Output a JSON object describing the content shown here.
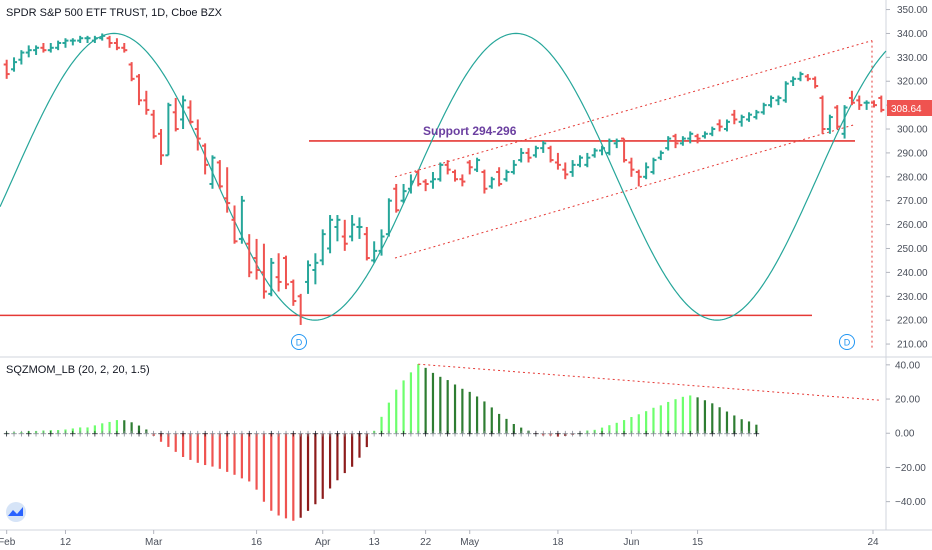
{
  "chart_data": [
    {
      "type": "ohlc",
      "title": "SPDR S&P 500 ETF TRUST, 1D, Cboe BZX",
      "y_axis_ticks": [
        210,
        220,
        230,
        240,
        250,
        260,
        270,
        280,
        290,
        300,
        310,
        320,
        330,
        340,
        350
      ],
      "ylim": [
        205,
        354
      ],
      "last_price": "308.64",
      "x_axis_labels": [
        "Feb",
        "12",
        "Mar",
        "16",
        "Apr",
        "13",
        "22",
        "May",
        "18",
        "Jun",
        "15",
        "24"
      ],
      "support_label": "Support 294-296",
      "support_level": 295,
      "low_line_level": 222,
      "event_badges": [
        "D",
        "D"
      ],
      "bars": [
        {
          "o": 327,
          "h": 329,
          "l": 321,
          "c": 323
        },
        {
          "o": 325,
          "h": 330,
          "l": 324,
          "c": 328
        },
        {
          "o": 329,
          "h": 333,
          "l": 327,
          "c": 332
        },
        {
          "o": 332,
          "h": 335,
          "l": 330,
          "c": 333
        },
        {
          "o": 333,
          "h": 335,
          "l": 331,
          "c": 334
        },
        {
          "o": 334,
          "h": 336,
          "l": 332,
          "c": 333
        },
        {
          "o": 333,
          "h": 336,
          "l": 332,
          "c": 334
        },
        {
          "o": 334,
          "h": 337,
          "l": 333,
          "c": 336
        },
        {
          "o": 336,
          "h": 338,
          "l": 334,
          "c": 337
        },
        {
          "o": 337,
          "h": 338,
          "l": 335,
          "c": 337
        },
        {
          "o": 337,
          "h": 339,
          "l": 336,
          "c": 338
        },
        {
          "o": 338,
          "h": 339,
          "l": 336,
          "c": 338
        },
        {
          "o": 337,
          "h": 339,
          "l": 336,
          "c": 338
        },
        {
          "o": 338,
          "h": 340,
          "l": 337,
          "c": 339
        },
        {
          "o": 338,
          "h": 339,
          "l": 334,
          "c": 336
        },
        {
          "o": 336,
          "h": 338,
          "l": 333,
          "c": 334
        },
        {
          "o": 334,
          "h": 336,
          "l": 332,
          "c": 333
        },
        {
          "o": 327,
          "h": 328,
          "l": 320,
          "c": 321
        },
        {
          "o": 322,
          "h": 323,
          "l": 310,
          "c": 312
        },
        {
          "o": 312,
          "h": 316,
          "l": 306,
          "c": 308
        },
        {
          "o": 306,
          "h": 308,
          "l": 296,
          "c": 297
        },
        {
          "o": 298,
          "h": 300,
          "l": 285,
          "c": 289
        },
        {
          "o": 289,
          "h": 311,
          "l": 289,
          "c": 310
        },
        {
          "o": 307,
          "h": 313,
          "l": 299,
          "c": 300
        },
        {
          "o": 304,
          "h": 314,
          "l": 300,
          "c": 312
        },
        {
          "o": 309,
          "h": 312,
          "l": 302,
          "c": 303
        },
        {
          "o": 300,
          "h": 304,
          "l": 291,
          "c": 296
        },
        {
          "o": 293,
          "h": 294,
          "l": 281,
          "c": 285
        },
        {
          "o": 277,
          "h": 289,
          "l": 275,
          "c": 288
        },
        {
          "o": 286,
          "h": 287,
          "l": 275,
          "c": 276
        },
        {
          "o": 271,
          "h": 284,
          "l": 265,
          "c": 269
        },
        {
          "o": 262,
          "h": 268,
          "l": 252,
          "c": 253
        },
        {
          "o": 254,
          "h": 272,
          "l": 252,
          "c": 270
        },
        {
          "o": 252,
          "h": 256,
          "l": 238,
          "c": 240
        },
        {
          "o": 246,
          "h": 254,
          "l": 237,
          "c": 241
        },
        {
          "o": 240,
          "h": 252,
          "l": 229,
          "c": 232
        },
        {
          "o": 231,
          "h": 246,
          "l": 230,
          "c": 244
        },
        {
          "o": 238,
          "h": 248,
          "l": 232,
          "c": 236
        },
        {
          "o": 246,
          "h": 247,
          "l": 233,
          "c": 235
        },
        {
          "o": 236,
          "h": 237,
          "l": 226,
          "c": 228
        },
        {
          "o": 230,
          "h": 231,
          "l": 218,
          "c": 222
        },
        {
          "o": 236,
          "h": 245,
          "l": 231,
          "c": 243
        },
        {
          "o": 241,
          "h": 248,
          "l": 235,
          "c": 244
        },
        {
          "o": 245,
          "h": 258,
          "l": 243,
          "c": 256
        },
        {
          "o": 250,
          "h": 264,
          "l": 248,
          "c": 262
        },
        {
          "o": 259,
          "h": 264,
          "l": 253,
          "c": 262
        },
        {
          "o": 255,
          "h": 262,
          "l": 249,
          "c": 252
        },
        {
          "o": 255,
          "h": 264,
          "l": 253,
          "c": 260
        },
        {
          "o": 259,
          "h": 263,
          "l": 254,
          "c": 259
        },
        {
          "o": 256,
          "h": 259,
          "l": 245,
          "c": 246
        },
        {
          "o": 245,
          "h": 253,
          "l": 244,
          "c": 249
        },
        {
          "o": 249,
          "h": 258,
          "l": 247,
          "c": 255
        },
        {
          "o": 256,
          "h": 271,
          "l": 255,
          "c": 270
        },
        {
          "o": 275,
          "h": 277,
          "l": 265,
          "c": 266
        },
        {
          "o": 270,
          "h": 277,
          "l": 269,
          "c": 274
        },
        {
          "o": 275,
          "h": 281,
          "l": 273,
          "c": 278
        },
        {
          "o": 282,
          "h": 283,
          "l": 276,
          "c": 277
        },
        {
          "o": 278,
          "h": 279,
          "l": 274,
          "c": 277
        },
        {
          "o": 278,
          "h": 282,
          "l": 275,
          "c": 279
        },
        {
          "o": 279,
          "h": 286,
          "l": 278,
          "c": 285
        },
        {
          "o": 285,
          "h": 287,
          "l": 281,
          "c": 283
        },
        {
          "o": 282,
          "h": 283,
          "l": 278,
          "c": 279
        },
        {
          "o": 279,
          "h": 281,
          "l": 276,
          "c": 278
        },
        {
          "o": 286,
          "h": 287,
          "l": 281,
          "c": 284
        },
        {
          "o": 283,
          "h": 288,
          "l": 282,
          "c": 287
        },
        {
          "o": 282,
          "h": 283,
          "l": 273,
          "c": 275
        },
        {
          "o": 276,
          "h": 280,
          "l": 275,
          "c": 279
        },
        {
          "o": 282,
          "h": 284,
          "l": 276,
          "c": 277
        },
        {
          "o": 279,
          "h": 283,
          "l": 278,
          "c": 282
        },
        {
          "o": 282,
          "h": 287,
          "l": 281,
          "c": 285
        },
        {
          "o": 287,
          "h": 292,
          "l": 286,
          "c": 290
        },
        {
          "o": 290,
          "h": 292,
          "l": 286,
          "c": 288
        },
        {
          "o": 289,
          "h": 293,
          "l": 288,
          "c": 292
        },
        {
          "o": 292,
          "h": 295,
          "l": 290,
          "c": 294
        },
        {
          "o": 292,
          "h": 293,
          "l": 286,
          "c": 287
        },
        {
          "o": 286,
          "h": 290,
          "l": 283,
          "c": 285
        },
        {
          "o": 283,
          "h": 286,
          "l": 279,
          "c": 281
        },
        {
          "o": 282,
          "h": 287,
          "l": 280,
          "c": 285
        },
        {
          "o": 285,
          "h": 289,
          "l": 284,
          "c": 288
        },
        {
          "o": 285,
          "h": 290,
          "l": 284,
          "c": 288
        },
        {
          "o": 289,
          "h": 292,
          "l": 288,
          "c": 291
        },
        {
          "o": 291,
          "h": 293,
          "l": 289,
          "c": 292
        },
        {
          "o": 290,
          "h": 296,
          "l": 289,
          "c": 295
        },
        {
          "o": 294,
          "h": 296,
          "l": 292,
          "c": 295
        },
        {
          "o": 296,
          "h": 296,
          "l": 286,
          "c": 287
        },
        {
          "o": 286,
          "h": 288,
          "l": 280,
          "c": 283
        },
        {
          "o": 282,
          "h": 283,
          "l": 276,
          "c": 280
        },
        {
          "o": 280,
          "h": 286,
          "l": 279,
          "c": 284
        },
        {
          "o": 282,
          "h": 288,
          "l": 281,
          "c": 287
        },
        {
          "o": 288,
          "h": 291,
          "l": 287,
          "c": 290
        },
        {
          "o": 292,
          "h": 297,
          "l": 291,
          "c": 296
        },
        {
          "o": 297,
          "h": 298,
          "l": 292,
          "c": 294
        },
        {
          "o": 294,
          "h": 297,
          "l": 293,
          "c": 296
        },
        {
          "o": 296,
          "h": 299,
          "l": 294,
          "c": 298
        },
        {
          "o": 297,
          "h": 298,
          "l": 294,
          "c": 296
        },
        {
          "o": 297,
          "h": 299,
          "l": 296,
          "c": 298
        },
        {
          "o": 298,
          "h": 301,
          "l": 297,
          "c": 300
        },
        {
          "o": 302,
          "h": 304,
          "l": 299,
          "c": 301
        },
        {
          "o": 300,
          "h": 304,
          "l": 299,
          "c": 303
        },
        {
          "o": 306,
          "h": 308,
          "l": 302,
          "c": 304
        },
        {
          "o": 303,
          "h": 306,
          "l": 301,
          "c": 305
        },
        {
          "o": 304,
          "h": 307,
          "l": 303,
          "c": 306
        },
        {
          "o": 305,
          "h": 308,
          "l": 304,
          "c": 307
        },
        {
          "o": 307,
          "h": 311,
          "l": 306,
          "c": 310
        },
        {
          "o": 310,
          "h": 314,
          "l": 309,
          "c": 313
        },
        {
          "o": 312,
          "h": 314,
          "l": 310,
          "c": 313
        },
        {
          "o": 312,
          "h": 320,
          "l": 311,
          "c": 319
        },
        {
          "o": 320,
          "h": 322,
          "l": 318,
          "c": 321
        },
        {
          "o": 321,
          "h": 324,
          "l": 320,
          "c": 323
        },
        {
          "o": 322,
          "h": 323,
          "l": 320,
          "c": 321
        },
        {
          "o": 321,
          "h": 322,
          "l": 317,
          "c": 318
        },
        {
          "o": 313,
          "h": 314,
          "l": 298,
          "c": 300
        },
        {
          "o": 300,
          "h": 306,
          "l": 298,
          "c": 305
        },
        {
          "o": 309,
          "h": 310,
          "l": 300,
          "c": 301
        },
        {
          "o": 298,
          "h": 310,
          "l": 296,
          "c": 309
        },
        {
          "o": 313,
          "h": 316,
          "l": 310,
          "c": 311
        },
        {
          "o": 312,
          "h": 314,
          "l": 308,
          "c": 310
        },
        {
          "o": 311,
          "h": 312,
          "l": 308,
          "c": 311
        },
        {
          "o": 311,
          "h": 312,
          "l": 309,
          "c": 310
        },
        {
          "o": 313,
          "h": 314,
          "l": 307,
          "c": 308
        }
      ]
    },
    {
      "type": "histogram",
      "title": "SQZMOM_LB (20, 2, 20, 1.5)",
      "y_axis_ticks": [
        -40,
        -20,
        0,
        20,
        40
      ],
      "ylim": [
        -56,
        44
      ],
      "values": [
        0.3,
        0.6,
        0.8,
        1.2,
        1.3,
        1.6,
        1.8,
        1.9,
        2.2,
        2.8,
        3.4,
        3.4,
        4.6,
        5.8,
        6.6,
        7.7,
        7.6,
        6.4,
        4.5,
        2.2,
        -1.6,
        -5.0,
        -8.0,
        -10.9,
        -13.9,
        -15.6,
        -17.3,
        -18.6,
        -19.5,
        -20.8,
        -22.6,
        -24.3,
        -26.4,
        -28.2,
        -33.0,
        -40.1,
        -45.3,
        -48.1,
        -49.8,
        -51.2,
        -49.4,
        -45.4,
        -41.5,
        -38.4,
        -32.3,
        -27.5,
        -23.3,
        -19.6,
        -14.3,
        -8.1,
        1.4,
        9.6,
        17.9,
        25.5,
        30.9,
        35.6,
        40.4,
        38.2,
        35.3,
        33.0,
        31.1,
        28.5,
        26.0,
        24.2,
        21.5,
        18.6,
        15.1,
        11.3,
        8.4,
        5.4,
        3.3,
        1.5,
        -0.3,
        -1.3,
        -1.4,
        -2.0,
        -1.6,
        -0.9,
        0.2,
        1.6,
        2.0,
        3.3,
        4.7,
        6.1,
        7.7,
        9.5,
        11.1,
        12.9,
        14.9,
        16.3,
        18.3,
        19.9,
        21.3,
        22.1,
        21.0,
        19.3,
        17.5,
        15.2,
        12.7,
        10.4,
        8.2,
        6.9,
        5.0
      ],
      "colors": {
        "rising_positive": "#6dff6d",
        "falling_positive": "#2e7d32",
        "falling_negative": "#ef5350",
        "rising_negative": "#8d1c1c"
      }
    }
  ]
}
